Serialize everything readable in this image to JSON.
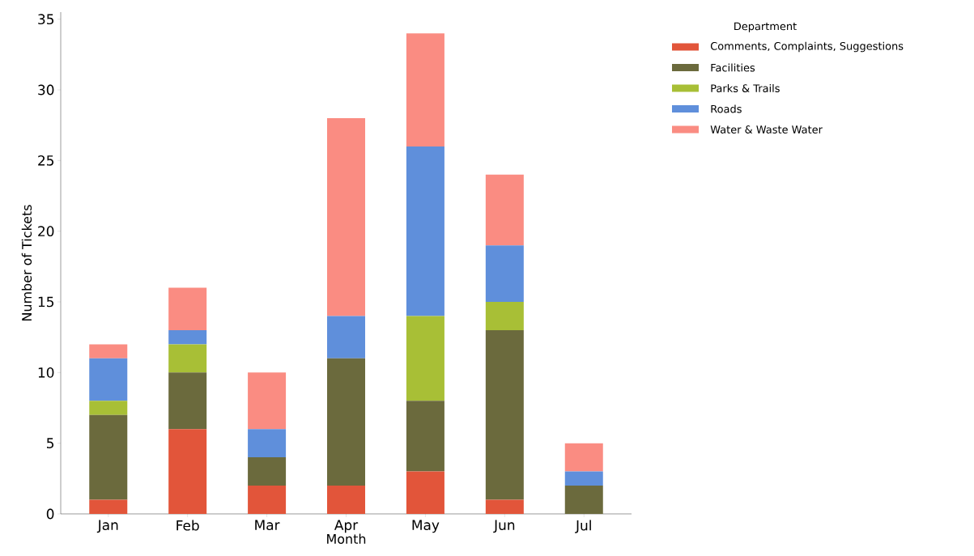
{
  "chart_data": {
    "type": "bar",
    "stacked": true,
    "xlabel": "Month",
    "ylabel": "Number of Tickets",
    "legend_title": "Department",
    "legend": "top right",
    "categories": [
      "Jan",
      "Feb",
      "Mar",
      "Apr",
      "May",
      "Jun",
      "Jul"
    ],
    "ylim": [
      0,
      35.5
    ],
    "yticks": [
      0,
      5,
      10,
      15,
      20,
      25,
      30,
      35
    ],
    "grid": false,
    "series": [
      {
        "name": "Comments, Complaints, Suggestions",
        "color": "#e2553a",
        "values": [
          1,
          6,
          2,
          2,
          3,
          1,
          0
        ]
      },
      {
        "name": "Facilities",
        "color": "#6b6a3d",
        "values": [
          6,
          4,
          2,
          9,
          5,
          12,
          2
        ]
      },
      {
        "name": "Parks & Trails",
        "color": "#a8bf36",
        "values": [
          1,
          2,
          0,
          0,
          6,
          2,
          0
        ]
      },
      {
        "name": "Roads",
        "color": "#5f8fdb",
        "values": [
          3,
          1,
          2,
          3,
          12,
          4,
          1
        ]
      },
      {
        "name": "Water & Waste Water",
        "color": "#fa8c82",
        "values": [
          1,
          3,
          4,
          14,
          8,
          5,
          2
        ]
      }
    ]
  }
}
